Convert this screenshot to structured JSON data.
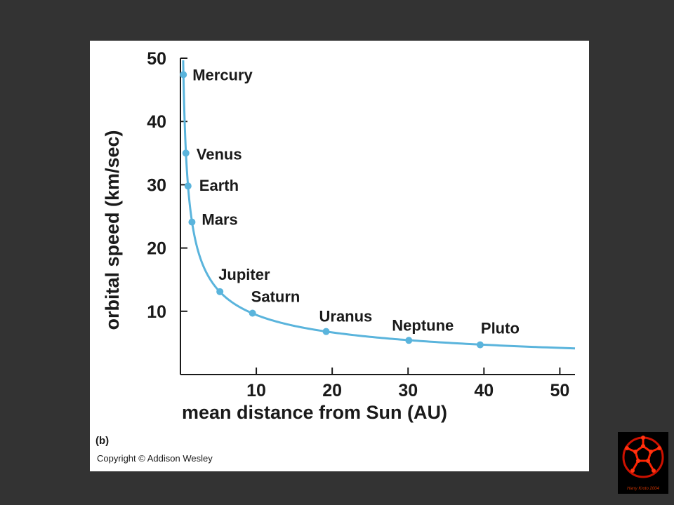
{
  "figure": {
    "panel_label": "(b)",
    "copyright": "Copyright © Addison Wesley"
  },
  "logo": {
    "name": "buckyball-logo",
    "caption": "Harry Kroto 2004"
  },
  "colors": {
    "background": "#333333",
    "panel": "#ffffff",
    "curve": "#5ab4dc",
    "text": "#1a1a1a"
  },
  "chart_data": {
    "type": "line",
    "title": "",
    "xlabel": "mean distance from Sun (AU)",
    "ylabel": "orbital speed (km/sec)",
    "xlim": [
      0,
      52
    ],
    "ylim": [
      0,
      50
    ],
    "x_ticks": [
      10,
      20,
      30,
      40,
      50
    ],
    "y_ticks": [
      10,
      20,
      30,
      40,
      50
    ],
    "curve": {
      "relation": "v = 29.8 / sqrt(d)",
      "x_start": 0.36,
      "x_end": 52
    },
    "points": [
      {
        "label": "Mercury",
        "x": 0.39,
        "y": 47.4
      },
      {
        "label": "Venus",
        "x": 0.72,
        "y": 35.0
      },
      {
        "label": "Earth",
        "x": 1.0,
        "y": 29.8
      },
      {
        "label": "Mars",
        "x": 1.52,
        "y": 24.1
      },
      {
        "label": "Jupiter",
        "x": 5.2,
        "y": 13.1
      },
      {
        "label": "Saturn",
        "x": 9.5,
        "y": 9.7
      },
      {
        "label": "Uranus",
        "x": 19.2,
        "y": 6.8
      },
      {
        "label": "Neptune",
        "x": 30.1,
        "y": 5.4
      },
      {
        "label": "Pluto",
        "x": 39.5,
        "y": 4.7
      }
    ],
    "grid": false,
    "legend": "none"
  }
}
